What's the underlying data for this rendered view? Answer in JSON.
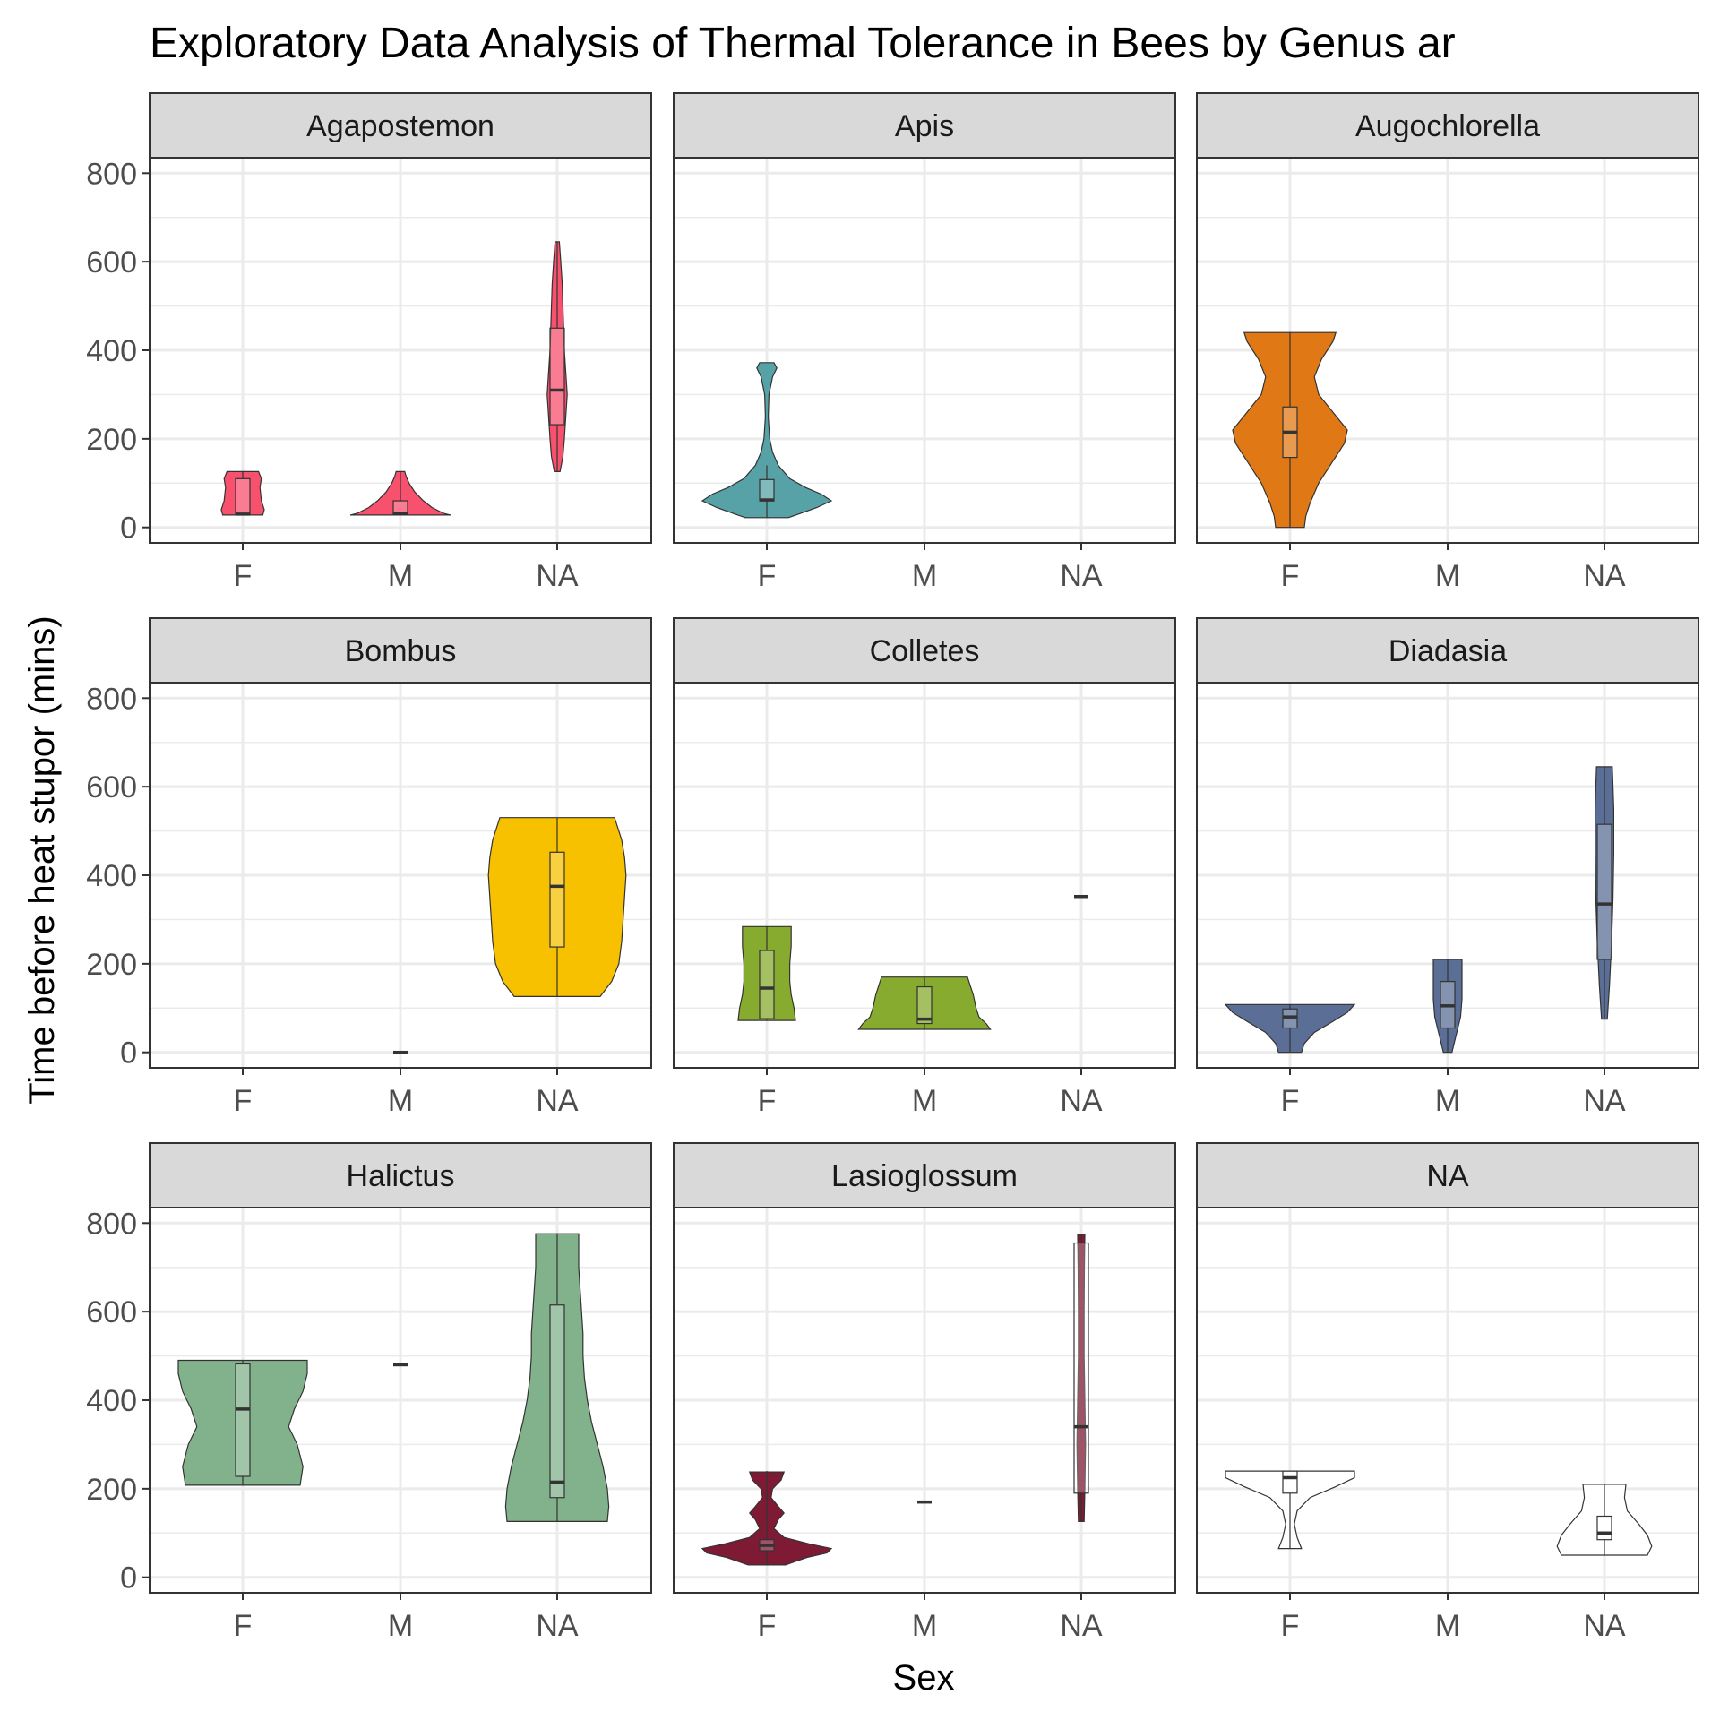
{
  "chart_data": {
    "type": "violin",
    "title": "Exploratory Data Analysis of Thermal Tolerance in Bees by Genus ar",
    "xlabel": "Sex",
    "ylabel": "Time before heat stupor (mins)",
    "categories": [
      "F",
      "M",
      "NA"
    ],
    "y_ticks": [
      0,
      200,
      400,
      600,
      800
    ],
    "ylim": [
      -35,
      835
    ],
    "grid": true,
    "legend": "none",
    "facet_layout": "3x3",
    "panels": [
      {
        "genus": "Agapostemon",
        "color": "#F8516E",
        "groups": [
          {
            "sex": "F",
            "violin": [
              [
                28,
                0.14
              ],
              [
                40,
                0.15
              ],
              [
                60,
                0.13
              ],
              [
                90,
                0.12
              ],
              [
                110,
                0.13
              ],
              [
                126,
                0.11
              ]
            ],
            "box": {
              "q1": 28,
              "median": 30,
              "q3": 110,
              "whisker_low": 28,
              "whisker_high": 126
            }
          },
          {
            "sex": "M",
            "violin": [
              [
                28,
                0.35
              ],
              [
                32,
                0.3
              ],
              [
                45,
                0.22
              ],
              [
                60,
                0.16
              ],
              [
                80,
                0.1
              ],
              [
                100,
                0.06
              ],
              [
                115,
                0.04
              ],
              [
                126,
                0.03
              ]
            ],
            "box": {
              "q1": 28,
              "median": 32,
              "q3": 60,
              "whisker_low": 28,
              "whisker_high": 126
            }
          },
          {
            "sex": "NA",
            "violin": [
              [
                126,
                0.02
              ],
              [
                160,
                0.04
              ],
              [
                200,
                0.05
              ],
              [
                250,
                0.06
              ],
              [
                300,
                0.07
              ],
              [
                350,
                0.06
              ],
              [
                400,
                0.05
              ],
              [
                450,
                0.045
              ],
              [
                500,
                0.04
              ],
              [
                550,
                0.035
              ],
              [
                600,
                0.025
              ],
              [
                645,
                0.015
              ]
            ],
            "box": {
              "q1": 232,
              "median": 310,
              "q3": 450,
              "whisker_low": 126,
              "whisker_high": 645
            }
          }
        ]
      },
      {
        "genus": "Apis",
        "color": "#57A2A7",
        "groups": [
          {
            "sex": "F",
            "violin": [
              [
                22,
                0.15
              ],
              [
                30,
                0.22
              ],
              [
                45,
                0.35
              ],
              [
                60,
                0.45
              ],
              [
                75,
                0.38
              ],
              [
                90,
                0.27
              ],
              [
                110,
                0.16
              ],
              [
                140,
                0.08
              ],
              [
                170,
                0.04
              ],
              [
                200,
                0.02
              ],
              [
                250,
                0.01
              ],
              [
                300,
                0.015
              ],
              [
                340,
                0.04
              ],
              [
                360,
                0.07
              ],
              [
                372,
                0.05
              ]
            ],
            "box": {
              "q1": 60,
              "median": 62,
              "q3": 108,
              "whisker_low": 22,
              "whisker_high": 140
            }
          },
          {
            "sex": "M",
            "violin": [],
            "box": null
          },
          {
            "sex": "NA",
            "violin": [],
            "box": null
          }
        ]
      },
      {
        "genus": "Augochlorella",
        "color": "#E07815",
        "groups": [
          {
            "sex": "F",
            "violin": [
              [
                0,
                0.1
              ],
              [
                25,
                0.11
              ],
              [
                55,
                0.14
              ],
              [
                100,
                0.2
              ],
              [
                150,
                0.3
              ],
              [
                190,
                0.38
              ],
              [
                220,
                0.4
              ],
              [
                260,
                0.3
              ],
              [
                300,
                0.2
              ],
              [
                340,
                0.17
              ],
              [
                380,
                0.22
              ],
              [
                420,
                0.3
              ],
              [
                440,
                0.32
              ]
            ],
            "box": {
              "q1": 158,
              "median": 215,
              "q3": 272,
              "whisker_low": 0,
              "whisker_high": 440
            }
          },
          {
            "sex": "M",
            "violin": [],
            "box": null
          },
          {
            "sex": "NA",
            "violin": [],
            "box": null
          }
        ]
      },
      {
        "genus": "Bombus",
        "color": "#F7C100",
        "groups": [
          {
            "sex": "F",
            "violin": [],
            "box": null
          },
          {
            "sex": "M",
            "violin": [],
            "box": {
              "q1": 0,
              "median": 0,
              "q3": 0,
              "whisker_low": 0,
              "whisker_high": 0
            }
          },
          {
            "sex": "NA",
            "violin": [
              [
                126,
                0.3
              ],
              [
                160,
                0.38
              ],
              [
                200,
                0.43
              ],
              [
                250,
                0.45
              ],
              [
                300,
                0.46
              ],
              [
                350,
                0.47
              ],
              [
                400,
                0.48
              ],
              [
                440,
                0.47
              ],
              [
                480,
                0.45
              ],
              [
                510,
                0.42
              ],
              [
                530,
                0.4
              ]
            ],
            "box": {
              "q1": 238,
              "median": 375,
              "q3": 452,
              "whisker_low": 126,
              "whisker_high": 530
            }
          }
        ]
      },
      {
        "genus": "Colletes",
        "color": "#86AB2F",
        "groups": [
          {
            "sex": "F",
            "violin": [
              [
                72,
                0.2
              ],
              [
                100,
                0.19
              ],
              [
                130,
                0.17
              ],
              [
                160,
                0.16
              ],
              [
                200,
                0.16
              ],
              [
                240,
                0.17
              ],
              [
                284,
                0.17
              ]
            ],
            "box": {
              "q1": 76,
              "median": 145,
              "q3": 230,
              "whisker_low": 72,
              "whisker_high": 284
            }
          },
          {
            "sex": "M",
            "violin": [
              [
                52,
                0.46
              ],
              [
                65,
                0.43
              ],
              [
                80,
                0.38
              ],
              [
                100,
                0.36
              ],
              [
                130,
                0.34
              ],
              [
                150,
                0.32
              ],
              [
                170,
                0.3
              ]
            ],
            "box": {
              "q1": 65,
              "median": 75,
              "q3": 148,
              "whisker_low": 52,
              "whisker_high": 170
            }
          },
          {
            "sex": "NA",
            "violin": [],
            "box": {
              "q1": 352,
              "median": 352,
              "q3": 352,
              "whisker_low": 352,
              "whisker_high": 352
            }
          }
        ]
      },
      {
        "genus": "Diadasia",
        "color": "#5B6F96",
        "groups": [
          {
            "sex": "F",
            "violin": [
              [
                0,
                0.08
              ],
              [
                20,
                0.1
              ],
              [
                45,
                0.17
              ],
              [
                70,
                0.3
              ],
              [
                90,
                0.4
              ],
              [
                108,
                0.45
              ]
            ],
            "box": {
              "q1": 55,
              "median": 80,
              "q3": 98,
              "whisker_low": 0,
              "whisker_high": 108
            }
          },
          {
            "sex": "M",
            "violin": [
              [
                0,
                0.03
              ],
              [
                40,
                0.06
              ],
              [
                80,
                0.09
              ],
              [
                120,
                0.1
              ],
              [
                160,
                0.1
              ],
              [
                210,
                0.1
              ]
            ],
            "box": {
              "q1": 55,
              "median": 105,
              "q3": 160,
              "whisker_low": 0,
              "whisker_high": 210
            }
          },
          {
            "sex": "NA",
            "violin": [
              [
                75,
                0.02
              ],
              [
                150,
                0.035
              ],
              [
                250,
                0.05
              ],
              [
                350,
                0.06
              ],
              [
                450,
                0.065
              ],
              [
                550,
                0.065
              ],
              [
                600,
                0.06
              ],
              [
                645,
                0.055
              ]
            ],
            "box": {
              "q1": 210,
              "median": 335,
              "q3": 515,
              "whisker_low": 75,
              "whisker_high": 645
            }
          }
        ]
      },
      {
        "genus": "Halictus",
        "color": "#82B28B",
        "groups": [
          {
            "sex": "F",
            "violin": [
              [
                208,
                0.4
              ],
              [
                250,
                0.42
              ],
              [
                300,
                0.38
              ],
              [
                340,
                0.32
              ],
              [
                380,
                0.36
              ],
              [
                420,
                0.42
              ],
              [
                460,
                0.45
              ],
              [
                490,
                0.45
              ]
            ],
            "box": {
              "q1": 228,
              "median": 380,
              "q3": 482,
              "whisker_low": 208,
              "whisker_high": 490
            }
          },
          {
            "sex": "M",
            "violin": [],
            "box": {
              "q1": 480,
              "median": 480,
              "q3": 480,
              "whisker_low": 480,
              "whisker_high": 480
            }
          },
          {
            "sex": "NA",
            "violin": [
              [
                126,
                0.35
              ],
              [
                160,
                0.36
              ],
              [
                200,
                0.35
              ],
              [
                250,
                0.32
              ],
              [
                300,
                0.28
              ],
              [
                350,
                0.24
              ],
              [
                400,
                0.21
              ],
              [
                450,
                0.19
              ],
              [
                500,
                0.18
              ],
              [
                550,
                0.18
              ],
              [
                600,
                0.17
              ],
              [
                650,
                0.16
              ],
              [
                700,
                0.15
              ],
              [
                750,
                0.15
              ],
              [
                776,
                0.15
              ]
            ],
            "box": {
              "q1": 180,
              "median": 215,
              "q3": 615,
              "whisker_low": 126,
              "whisker_high": 776
            }
          }
        ]
      },
      {
        "genus": "Lasioglossum",
        "color": "#7F1A34",
        "groups": [
          {
            "sex": "F",
            "violin": [
              [
                28,
                0.13
              ],
              [
                45,
                0.28
              ],
              [
                55,
                0.42
              ],
              [
                65,
                0.45
              ],
              [
                75,
                0.3
              ],
              [
                90,
                0.12
              ],
              [
                110,
                0.05
              ],
              [
                130,
                0.08
              ],
              [
                145,
                0.12
              ],
              [
                160,
                0.08
              ],
              [
                180,
                0.03
              ],
              [
                200,
                0.04
              ],
              [
                220,
                0.1
              ],
              [
                238,
                0.12
              ]
            ],
            "box": {
              "q1": 60,
              "median": 72,
              "q3": 85,
              "whisker_low": 28,
              "whisker_high": 240
            }
          },
          {
            "sex": "M",
            "violin": [],
            "box": {
              "q1": 170,
              "median": 170,
              "q3": 170,
              "whisker_low": 170,
              "whisker_high": 170
            }
          },
          {
            "sex": "NA",
            "violin": [
              [
                126,
                0.02
              ],
              [
                200,
                0.025
              ],
              [
                300,
                0.03
              ],
              [
                400,
                0.025
              ],
              [
                500,
                0.02
              ],
              [
                600,
                0.02
              ],
              [
                700,
                0.022
              ],
              [
                775,
                0.025
              ]
            ],
            "box": {
              "q1": 190,
              "median": 340,
              "q3": 755,
              "whisker_low": 126,
              "whisker_high": 775
            }
          }
        ]
      },
      {
        "genus": "NA",
        "color": "#FFFFFF",
        "groups": [
          {
            "sex": "F",
            "violin": [
              [
                65,
                0.08
              ],
              [
                90,
                0.05
              ],
              [
                120,
                0.03
              ],
              [
                150,
                0.05
              ],
              [
                180,
                0.14
              ],
              [
                205,
                0.32
              ],
              [
                225,
                0.45
              ],
              [
                240,
                0.45
              ]
            ],
            "box": {
              "q1": 190,
              "median": 225,
              "q3": 240,
              "whisker_low": 65,
              "whisker_high": 240
            }
          },
          {
            "sex": "M",
            "violin": [],
            "box": null
          },
          {
            "sex": "NA",
            "violin": [
              [
                50,
                0.3
              ],
              [
                70,
                0.33
              ],
              [
                95,
                0.3
              ],
              [
                120,
                0.24
              ],
              [
                150,
                0.16
              ],
              [
                180,
                0.14
              ],
              [
                210,
                0.15
              ]
            ],
            "box": {
              "q1": 85,
              "median": 100,
              "q3": 138,
              "whisker_low": 50,
              "whisker_high": 210
            }
          }
        ]
      }
    ]
  }
}
